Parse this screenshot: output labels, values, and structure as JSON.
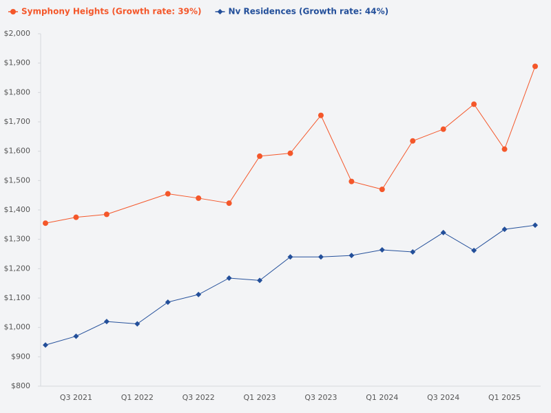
{
  "chart_data": {
    "type": "line",
    "categories": [
      null,
      "Q3 2021",
      null,
      "Q1 2022",
      null,
      "Q3 2022",
      null,
      "Q1 2023",
      null,
      "Q3 2023",
      null,
      "Q1 2024",
      null,
      "Q3 2024",
      null,
      "Q1 2025",
      null
    ],
    "series": [
      {
        "name": "Symphony Heights (Growth rate: 39%)",
        "color": "#f4572a",
        "marker": "circle",
        "values": [
          1355,
          1375,
          1385,
          null,
          1455,
          1440,
          1423,
          1583,
          1593,
          1722,
          1497,
          1470,
          1635,
          1675,
          1760,
          1607,
          1889
        ]
      },
      {
        "name": "Nv Residences (Growth rate: 44%)",
        "color": "#234f9a",
        "marker": "diamond",
        "values": [
          940,
          970,
          1020,
          1012,
          1086,
          1112,
          1168,
          1160,
          1240,
          1240,
          1245,
          1264,
          1257,
          1323,
          1262,
          1334,
          1348
        ]
      }
    ],
    "ylim": [
      800,
      2000
    ],
    "yticks": [
      {
        "value": 800,
        "label": "$800"
      },
      {
        "value": 900,
        "label": "$900"
      },
      {
        "value": 1000,
        "label": "$1,000"
      },
      {
        "value": 1100,
        "label": "$1,100"
      },
      {
        "value": 1200,
        "label": "$1,200"
      },
      {
        "value": 1300,
        "label": "$1,300"
      },
      {
        "value": 1400,
        "label": "$1,400"
      },
      {
        "value": 1500,
        "label": "$1,500"
      },
      {
        "value": 1600,
        "label": "$1,600"
      },
      {
        "value": 1700,
        "label": "$1,700"
      },
      {
        "value": 1800,
        "label": "$1,800"
      },
      {
        "value": 1900,
        "label": "$1,900"
      },
      {
        "value": 2000,
        "label": "$2,000"
      }
    ],
    "span_gaps": true,
    "grid": false,
    "legend": "top-left"
  }
}
